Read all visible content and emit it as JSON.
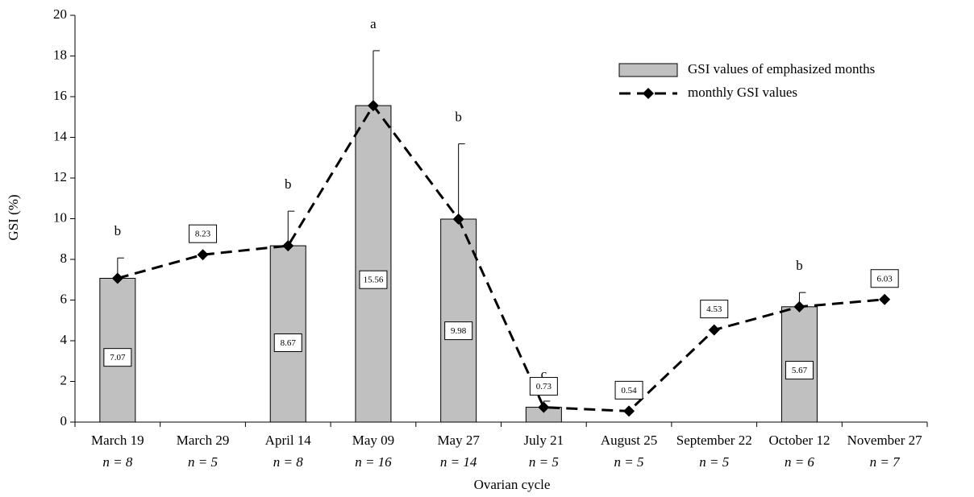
{
  "chart_data": {
    "type": "bar-line",
    "x_label": "Ovarian cycle",
    "y_label": "GSI (%)",
    "categories": [
      "March 19",
      "March 29",
      "April 14",
      "May 09",
      "May 27",
      "July 21",
      "August 25",
      "September 22",
      "October 12",
      "November 27"
    ],
    "n_labels": [
      "n = 8",
      "n = 5",
      "n = 8",
      "n = 16",
      "n = 14",
      "n = 5",
      "n = 5",
      "n = 5",
      "n = 6",
      "n = 7"
    ],
    "series": [
      {
        "name": "GSI values of emphasized months",
        "kind": "bar",
        "color": "#c0c0c0",
        "values": [
          7.07,
          null,
          8.67,
          15.56,
          9.98,
          0.73,
          null,
          null,
          5.67,
          null
        ],
        "errors": [
          1.0,
          null,
          1.7,
          2.7,
          3.7,
          0.3,
          null,
          null,
          0.7,
          null
        ],
        "annotations": [
          "b",
          null,
          "b",
          "a",
          "b",
          "c",
          null,
          null,
          "b",
          null
        ]
      },
      {
        "name": "monthly GSI values",
        "kind": "line",
        "color": "#000000",
        "values": [
          7.07,
          8.23,
          8.67,
          15.56,
          9.98,
          0.73,
          0.54,
          4.53,
          5.67,
          6.03
        ]
      }
    ],
    "ylim": [
      0,
      20
    ],
    "yticks": [
      0,
      2,
      4,
      6,
      8,
      10,
      12,
      14,
      16,
      18,
      20
    ]
  }
}
